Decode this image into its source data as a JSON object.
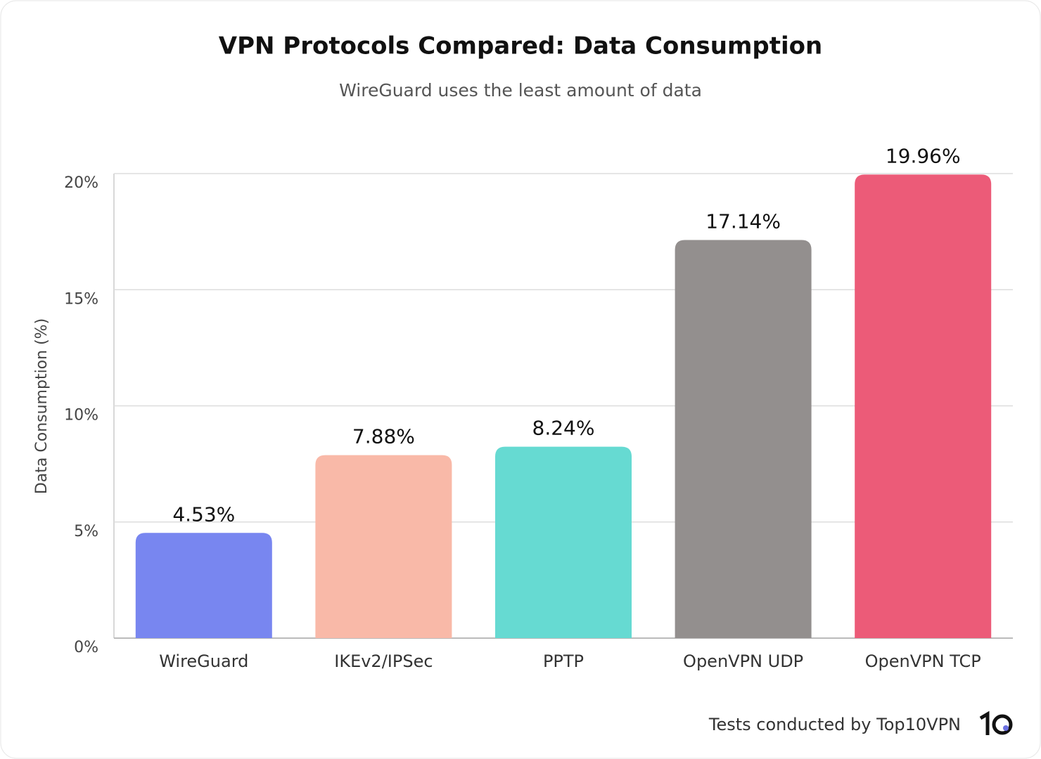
{
  "chart_data": {
    "type": "bar",
    "title": "VPN Protocols Compared: Data Consumption",
    "subtitle": "WireGuard uses the least amount of data",
    "y_label": "Data Consumption (%)",
    "categories": [
      "WireGuard",
      "IKEv2/IPSec",
      "PPTP",
      "OpenVPN UDP",
      "OpenVPN TCP"
    ],
    "values": [
      4.53,
      7.88,
      8.24,
      17.14,
      19.96
    ],
    "value_labels": [
      "4.53%",
      "7.88%",
      "8.24%",
      "17.14%",
      "19.96%"
    ],
    "colors": [
      "#7886f0",
      "#f9b9a8",
      "#66dad2",
      "#938f8e",
      "#ec5b78"
    ],
    "ylim": [
      0,
      20
    ],
    "yticks": [
      {
        "value": 0,
        "label": "0%"
      },
      {
        "value": 5,
        "label": "5%"
      },
      {
        "value": 10,
        "label": "10%"
      },
      {
        "value": 15,
        "label": "15%"
      },
      {
        "value": 20,
        "label": "20%"
      }
    ],
    "grid": true,
    "footer": "Tests conducted by Top10VPN"
  }
}
